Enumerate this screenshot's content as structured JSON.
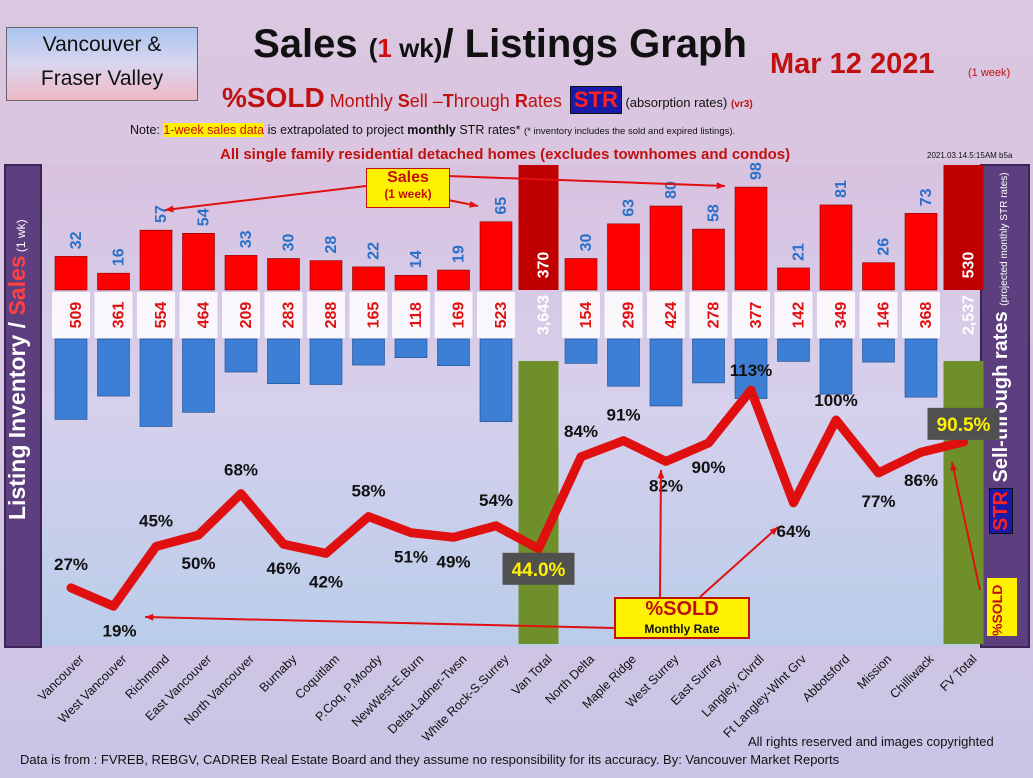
{
  "header": {
    "region_line1": "Vancouver &",
    "region_line2": "Fraser Valley",
    "title_a": "Sales",
    "title_b": "(",
    "title_c": "1",
    "title_d": " wk)",
    "title_e": "/ Listings Graph",
    "date": "Mar 12  2021",
    "date_note": "(1 week)",
    "sub_sold": "%SOLD",
    "sub_rest_1": " Monthly ",
    "sub_S": "S",
    "sub_rest_2": "ell –",
    "sub_T": "T",
    "sub_rest_3": "hrough ",
    "sub_R": "R",
    "sub_rest_4": "ates",
    "sub_str": "STR",
    "sub_abs": " (absorption rates) ",
    "sub_ver": "(vr3)",
    "note_a": "Note: ",
    "note_hl": "1-week sales data",
    "note_b": " is extrapolated to project ",
    "note_bold": "monthly",
    "note_c": " STR rates* ",
    "note_tiny": "(* inventory includes the sold and expired listings).",
    "scope_a": "All single family residential detached homes ",
    "scope_b": "(excludes townhomes and condos)",
    "timestamp": "2021.03.14.5:15AM b5a"
  },
  "left_axis": {
    "a": "Listing Inventory ",
    "b": "/ ",
    "c": "Sales",
    "d": " (1 wk)"
  },
  "right_axis": {
    "str": "STR",
    "a": " Sell-through rates ",
    "b": "(projected monthly STR rates)",
    "sold": "%SOLD"
  },
  "annotations": {
    "sales_title": "Sales",
    "sales_sub": "(1 week)",
    "sold_title": "%SOLD",
    "sold_sub": "Monthly Rate"
  },
  "footer": {
    "source": "Data is from : FVREB, REBGV, CADREB Real Estate Board and they assume no responsibility for its accuracy. By: Vancouver Market Reports",
    "copyright": "All rights reserved and  images copyrighted"
  },
  "colors": {
    "sales": "#ff0000",
    "totals_sales": "#c00000",
    "inventory": "#3e7fd6",
    "totals_inv": "#6e8f2a",
    "line": "#e01010",
    "sales_label": "#2a70c8",
    "inv_label": "#e01010"
  },
  "chart_data": {
    "type": "bar",
    "categories": [
      "Vancouver",
      "West Vancouver",
      "Richmond",
      "East Vancouver",
      "North Vancouver",
      "Burnaby",
      "Coquitlam",
      "P.Coq, P.Moody",
      "NewWest-E.Burn",
      "Delta-Ladner-Twsn",
      "White Rock-S.Surrey",
      "Van Total",
      "North Delta",
      "Maple Ridge",
      "West Surrey",
      "East Surrey",
      "Langley, Clvrdl",
      "Ft Langley-Wlnt Grv",
      "Abbotsford",
      "Mission",
      "Chilliwack",
      "FV Total"
    ],
    "series": [
      {
        "name": "Sales",
        "values": [
          32,
          16,
          57,
          54,
          33,
          30,
          28,
          22,
          14,
          19,
          65,
          370,
          30,
          63,
          80,
          58,
          98,
          21,
          81,
          26,
          73,
          530
        ]
      },
      {
        "name": "Listing Inventory",
        "values": [
          509,
          361,
          554,
          464,
          209,
          283,
          288,
          165,
          118,
          169,
          523,
          3643,
          154,
          299,
          424,
          278,
          377,
          142,
          349,
          146,
          368,
          2537
        ]
      },
      {
        "name": "%SOLD",
        "values": [
          27,
          19,
          45,
          50,
          68,
          46,
          42,
          58,
          51,
          49,
          54,
          44.0,
          84,
          91,
          82,
          90,
          113,
          64,
          100,
          77,
          86,
          90.5
        ]
      }
    ],
    "value_labels": [
      "27%",
      "19%",
      "45%",
      "50%",
      "68%",
      "46%",
      "42%",
      "58%",
      "51%",
      "49%",
      "54%",
      "44.0%",
      "84%",
      "91%",
      "82%",
      "90%",
      "113%",
      "64%",
      "100%",
      "77%",
      "86%",
      "90.5%"
    ],
    "count_labels_sales": [
      "32",
      "16",
      "57",
      "54",
      "33",
      "30",
      "28",
      "22",
      "14",
      "19",
      "65",
      "370",
      "30",
      "63",
      "80",
      "58",
      "98",
      "21",
      "81",
      "26",
      "73",
      "530"
    ],
    "count_labels_inv": [
      "509",
      "361",
      "554",
      "464",
      "209",
      "283",
      "288",
      "165",
      "118",
      "169",
      "523",
      "3,643",
      "154",
      "299",
      "424",
      "278",
      "377",
      "142",
      "349",
      "146",
      "368",
      "2,537"
    ],
    "highlighted_totals": [
      "Van Total",
      "FV Total"
    ]
  }
}
